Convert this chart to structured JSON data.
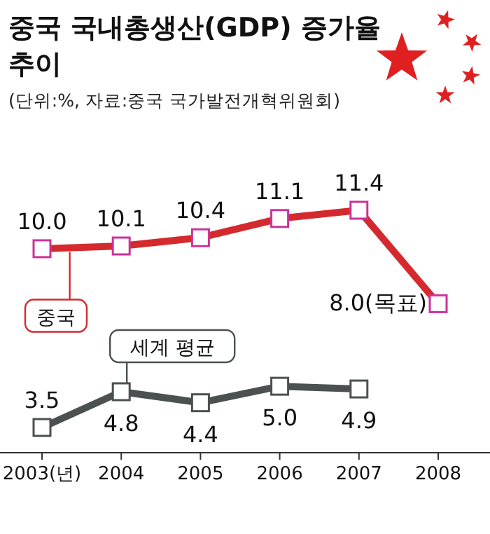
{
  "chart_data": {
    "type": "line",
    "title": "중국 국내총생산(GDP) 증가율 추이",
    "subtitle": "(단위:%, 자료:중국 국가발전개혁위원회)",
    "categories": [
      "2003(년)",
      "2004",
      "2005",
      "2006",
      "2007",
      "2008"
    ],
    "legend": false,
    "marker": "square",
    "line_style": "solid",
    "series": [
      {
        "name": "중국",
        "color": "#d42a2e",
        "values": [
          10.0,
          10.1,
          10.4,
          11.1,
          11.4,
          8.0
        ],
        "value_labels": [
          "10.0",
          "10.1",
          "10.4",
          "11.1",
          "11.4",
          "8.0(목표)"
        ]
      },
      {
        "name": "세계 평균",
        "color": "#4b5150",
        "values": [
          3.5,
          4.8,
          4.4,
          5.0,
          4.9,
          null
        ],
        "value_labels": [
          "3.5",
          "4.8",
          "4.4",
          "5.0",
          "4.9",
          null
        ]
      }
    ]
  }
}
